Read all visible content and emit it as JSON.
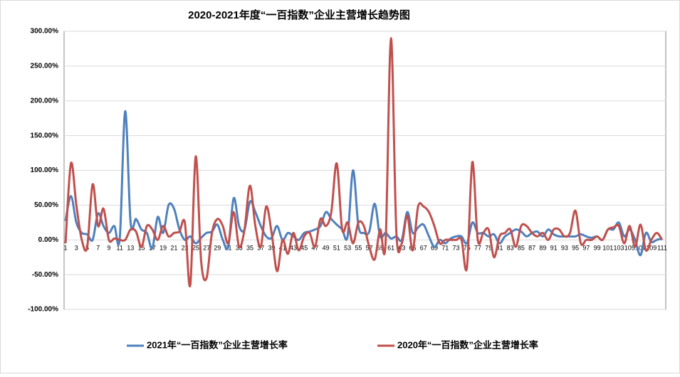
{
  "chart_data": {
    "type": "line",
    "title": "2020-2021年度“一百指数”企业主营增长趋势图",
    "categories": [
      1,
      null,
      3,
      null,
      5,
      null,
      7,
      null,
      9,
      null,
      11,
      null,
      13,
      null,
      15,
      null,
      17,
      null,
      19,
      null,
      21,
      null,
      23,
      null,
      25,
      null,
      27,
      null,
      29,
      null,
      31,
      null,
      33,
      null,
      35,
      null,
      37,
      null,
      39,
      null,
      41,
      null,
      43,
      null,
      45,
      null,
      47,
      null,
      49,
      null,
      51,
      null,
      53,
      null,
      55,
      null,
      57,
      null,
      59,
      null,
      61,
      null,
      63,
      null,
      65,
      null,
      67,
      null,
      69,
      null,
      71,
      null,
      73,
      null,
      75,
      null,
      77,
      null,
      79,
      null,
      81,
      null,
      83,
      null,
      85,
      null,
      87,
      null,
      89,
      null,
      91,
      null,
      93,
      null,
      95,
      null,
      97,
      null,
      99,
      null,
      101,
      null,
      103,
      null,
      105,
      null,
      107,
      null,
      109,
      null,
      111
    ],
    "ylim": [
      -100,
      300
    ],
    "yticks": [
      {
        "value": -100,
        "label": "-100.00%"
      },
      {
        "value": -50,
        "label": "-50.00%"
      },
      {
        "value": 0,
        "label": "0.00%"
      },
      {
        "value": 50,
        "label": "50.00%"
      },
      {
        "value": 100,
        "label": "100.00%"
      },
      {
        "value": 150,
        "label": "150.00%"
      },
      {
        "value": 200,
        "label": "200.00%"
      },
      {
        "value": 250,
        "label": "250.00%"
      },
      {
        "value": 300,
        "label": "300.00%"
      }
    ],
    "grid": true,
    "series": [
      {
        "name": "2021年“一百指数”企业主营增长率",
        "color": "#4f81bd",
        "values": [
          27,
          63,
          25,
          10,
          8,
          0,
          38,
          20,
          10,
          20,
          2,
          185,
          25,
          30,
          15,
          10,
          -12,
          33,
          10,
          50,
          45,
          15,
          0,
          5,
          -5,
          3,
          10,
          12,
          22,
          0,
          -10,
          60,
          20,
          15,
          55,
          40,
          20,
          5,
          3,
          20,
          0,
          10,
          5,
          0,
          10,
          12,
          15,
          20,
          40,
          30,
          22,
          15,
          5,
          100,
          20,
          10,
          12,
          52,
          5,
          10,
          2,
          5,
          0,
          40,
          10,
          18,
          22,
          5,
          -10,
          0,
          -5,
          2,
          5,
          5,
          -5,
          25,
          10,
          10,
          5,
          8,
          -5,
          5,
          10,
          15,
          12,
          5,
          10,
          12,
          5,
          15,
          8,
          5,
          5,
          5,
          5,
          8,
          5,
          3,
          5,
          0,
          15,
          15,
          25,
          5,
          15,
          0,
          -22,
          10,
          -3,
          0,
          2
        ]
      },
      {
        "name": "2020年“一百指数”企业主营增长率",
        "color": "#c0504d",
        "values": [
          -5,
          110,
          50,
          0,
          -10,
          80,
          20,
          45,
          0,
          2,
          0,
          0,
          15,
          12,
          -10,
          20,
          15,
          0,
          20,
          5,
          10,
          12,
          25,
          -65,
          120,
          -30,
          -55,
          10,
          30,
          20,
          -5,
          40,
          -10,
          15,
          78,
          20,
          -10,
          48,
          10,
          -45,
          0,
          -20,
          10,
          -15,
          5,
          10,
          -10,
          30,
          20,
          40,
          110,
          15,
          25,
          -5,
          25,
          20,
          -10,
          -28,
          15,
          -5,
          290,
          10,
          -5,
          35,
          -15,
          48,
          48,
          40,
          20,
          -5,
          0,
          0,
          0,
          0,
          -40,
          112,
          0,
          10,
          15,
          -25,
          5,
          10,
          15,
          -10,
          20,
          20,
          10,
          5,
          10,
          0,
          15,
          15,
          5,
          10,
          42,
          -5,
          0,
          0,
          5,
          0,
          15,
          18,
          20,
          -5,
          20,
          -10,
          22,
          -15,
          0,
          10,
          0
        ]
      }
    ]
  }
}
